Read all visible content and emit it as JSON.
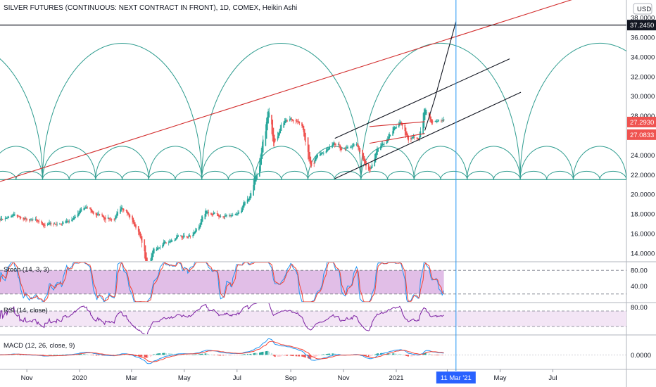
{
  "header": {
    "title": "SILVER FUTURES (CONTINUOUS: NEXT CONTRACT IN FRONT), 1D, COMEX, Heikin Ashi",
    "currency": "USD"
  },
  "colors": {
    "up": "#26a69a",
    "down": "#ef5350",
    "cycle": "#2e9c8f",
    "trend_red": "#d32f2f",
    "crosshair": "#2196f3",
    "stoch_fill": "#e1bee7",
    "rsi_fill": "#f3e5f5",
    "rsi_line": "#7b1fa2",
    "macd_line": "#2196f3",
    "signal_line": "#f44336",
    "hline": "#131722"
  },
  "chart_data": [
    {
      "type": "candlestick",
      "title": "SILVER FUTURES (CONTINUOUS: NEXT CONTRACT IN FRONT), 1D, COMEX, Heikin Ashi",
      "y_ticks": [
        "38.0000",
        "36.0000",
        "34.0000",
        "32.0000",
        "30.0000",
        "28.0000",
        "26.0000",
        "24.0000",
        "22.0000",
        "20.0000",
        "18.0000",
        "16.0000",
        "14.0000"
      ],
      "ylim": [
        13.2,
        39.8
      ],
      "x_ticks": [
        "Nov",
        "2020",
        "Mar",
        "May",
        "Jul",
        "Sep",
        "Nov",
        "2021",
        "Mar",
        "May",
        "Jul"
      ],
      "x_range": [
        "2019-10-01",
        "2021-09-24"
      ],
      "price_levels": [
        {
          "label": "37.2450",
          "value": 37.245,
          "style": "dark"
        },
        {
          "label": "27.2930",
          "value": 27.293,
          "style": "red"
        },
        {
          "label": "27.0833",
          "value": 27.0833,
          "style": "red"
        }
      ],
      "trend_line": {
        "points": [
          [
            "2019-10-01",
            21.3
          ],
          [
            "2021-08-05",
            40.2
          ]
        ]
      },
      "channel_lines": [
        {
          "points": [
            [
              "2020-10-22",
              25.7
            ],
            [
              "2021-05-12",
              33.8
            ]
          ]
        },
        {
          "points": [
            [
              "2020-10-22",
              21.6
            ],
            [
              "2021-05-25",
              30.4
            ]
          ]
        },
        {
          "points": [
            [
              "2020-12-01",
              26.9
            ],
            [
              "2021-02-03",
              27.4
            ]
          ]
        },
        {
          "points": [
            [
              "2020-12-01",
              25.2
            ],
            [
              "2021-02-03",
              26.2
            ]
          ]
        }
      ],
      "projection": {
        "points": [
          [
            "2021-02-03",
            26.5
          ],
          [
            "2021-02-14",
            29.6
          ],
          [
            "2021-03-11",
            37.6
          ]
        ]
      },
      "base_line": 21.5,
      "cycle_arcs": {
        "large_peak": 35.4,
        "medium_peak": 24.9,
        "small_peak": 22.35,
        "large_starts": [
          "2019-10-01",
          "2020-06-20",
          "2021-02-03"
        ],
        "large_ends": [
          "2019-11-26",
          "2020-09-24",
          "2021-09-24"
        ]
      },
      "series": [
        {
          "name": "price",
          "points": [
            [
              "2019-10-01",
              17.6
            ],
            [
              "2019-10-20",
              17.7
            ],
            [
              "2019-11-10",
              17.0
            ],
            [
              "2019-11-25",
              16.9
            ],
            [
              "2019-12-15",
              17.2
            ],
            [
              "2020-01-06",
              18.5
            ],
            [
              "2020-01-20",
              17.9
            ],
            [
              "2020-02-10",
              17.6
            ],
            [
              "2020-02-24",
              18.6
            ],
            [
              "2020-03-05",
              16.7
            ],
            [
              "2020-03-12",
              15.5
            ],
            [
              "2020-03-19",
              12.2
            ],
            [
              "2020-03-26",
              14.3
            ],
            [
              "2020-04-10",
              15.3
            ],
            [
              "2020-04-25",
              15.3
            ],
            [
              "2020-05-10",
              15.7
            ],
            [
              "2020-05-25",
              17.9
            ],
            [
              "2020-06-15",
              17.7
            ],
            [
              "2020-07-01",
              18.2
            ],
            [
              "2020-07-15",
              19.3
            ],
            [
              "2020-07-24",
              22.5
            ],
            [
              "2020-08-06",
              29.0
            ],
            [
              "2020-08-12",
              25.0
            ],
            [
              "2020-08-20",
              27.0
            ],
            [
              "2020-09-01",
              28.0
            ],
            [
              "2020-09-15",
              27.0
            ],
            [
              "2020-09-24",
              22.8
            ],
            [
              "2020-10-05",
              24.0
            ],
            [
              "2020-10-20",
              24.7
            ],
            [
              "2020-11-03",
              24.3
            ],
            [
              "2020-11-15",
              25.0
            ],
            [
              "2020-11-29",
              22.1
            ],
            [
              "2020-12-10",
              24.5
            ],
            [
              "2020-12-22",
              26.0
            ],
            [
              "2021-01-05",
              27.6
            ],
            [
              "2021-01-15",
              25.3
            ],
            [
              "2021-01-27",
              25.8
            ],
            [
              "2021-02-02",
              28.9
            ],
            [
              "2021-02-10",
              27.3
            ],
            [
              "2021-02-25",
              27.3
            ]
          ]
        }
      ]
    },
    {
      "type": "line",
      "name": "Stoch (14, 3, 3)",
      "y_ticks": [
        "80.00",
        "40.00"
      ],
      "ylim": [
        0,
        100
      ],
      "bands": [
        20,
        80
      ]
    },
    {
      "type": "line",
      "name": "RSI (14, close)",
      "y_ticks": [
        "80.00"
      ],
      "ylim": [
        10,
        90
      ],
      "bands": [
        30,
        70
      ]
    },
    {
      "type": "bar",
      "name": "MACD (12, 26, close, 9)",
      "y_ticks": [
        "0.0000"
      ],
      "ylim": [
        -2.2,
        2.9
      ]
    }
  ],
  "time_badge": {
    "label": "11 Mar '21",
    "date": "2021-03-11"
  }
}
